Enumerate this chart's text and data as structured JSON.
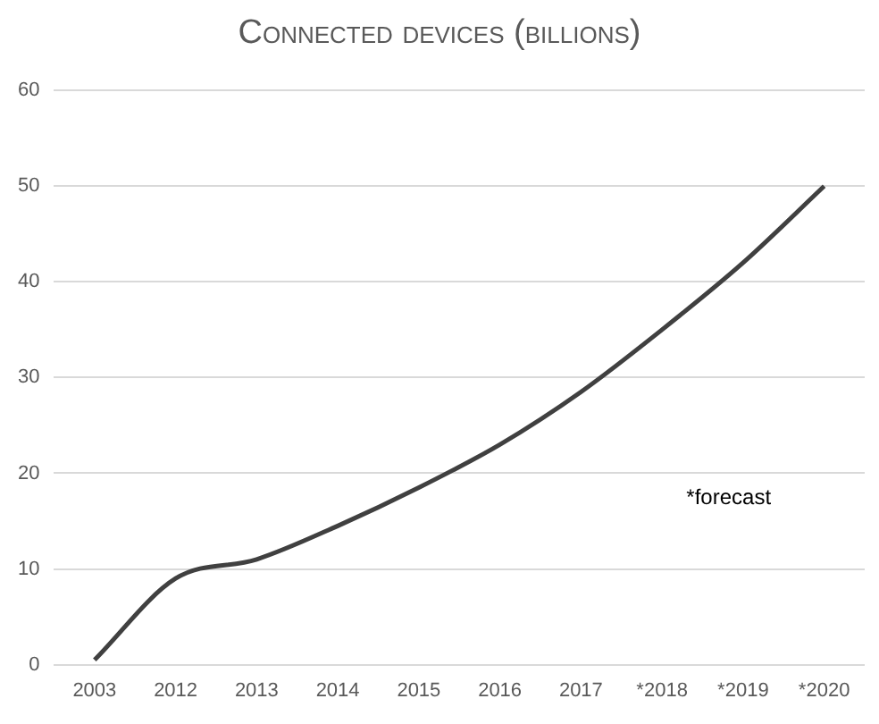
{
  "chart_data": {
    "type": "line",
    "title": "Connected devices (billions)",
    "categories": [
      "2003",
      "2012",
      "2013",
      "2014",
      "2015",
      "2016",
      "2017",
      "*2018",
      "*2019",
      "*2020"
    ],
    "series": [
      {
        "color": "#404040",
        "values": [
          0.5,
          9,
          11,
          14.5,
          18.5,
          23,
          28.5,
          35,
          42,
          50
        ]
      }
    ],
    "ylim": [
      0,
      60
    ],
    "yticks": [
      0,
      10,
      20,
      30,
      40,
      50,
      60
    ],
    "grid": "y",
    "legend": false,
    "marker": "none",
    "line_style": "solid",
    "annotations": [
      "*forecast"
    ]
  }
}
